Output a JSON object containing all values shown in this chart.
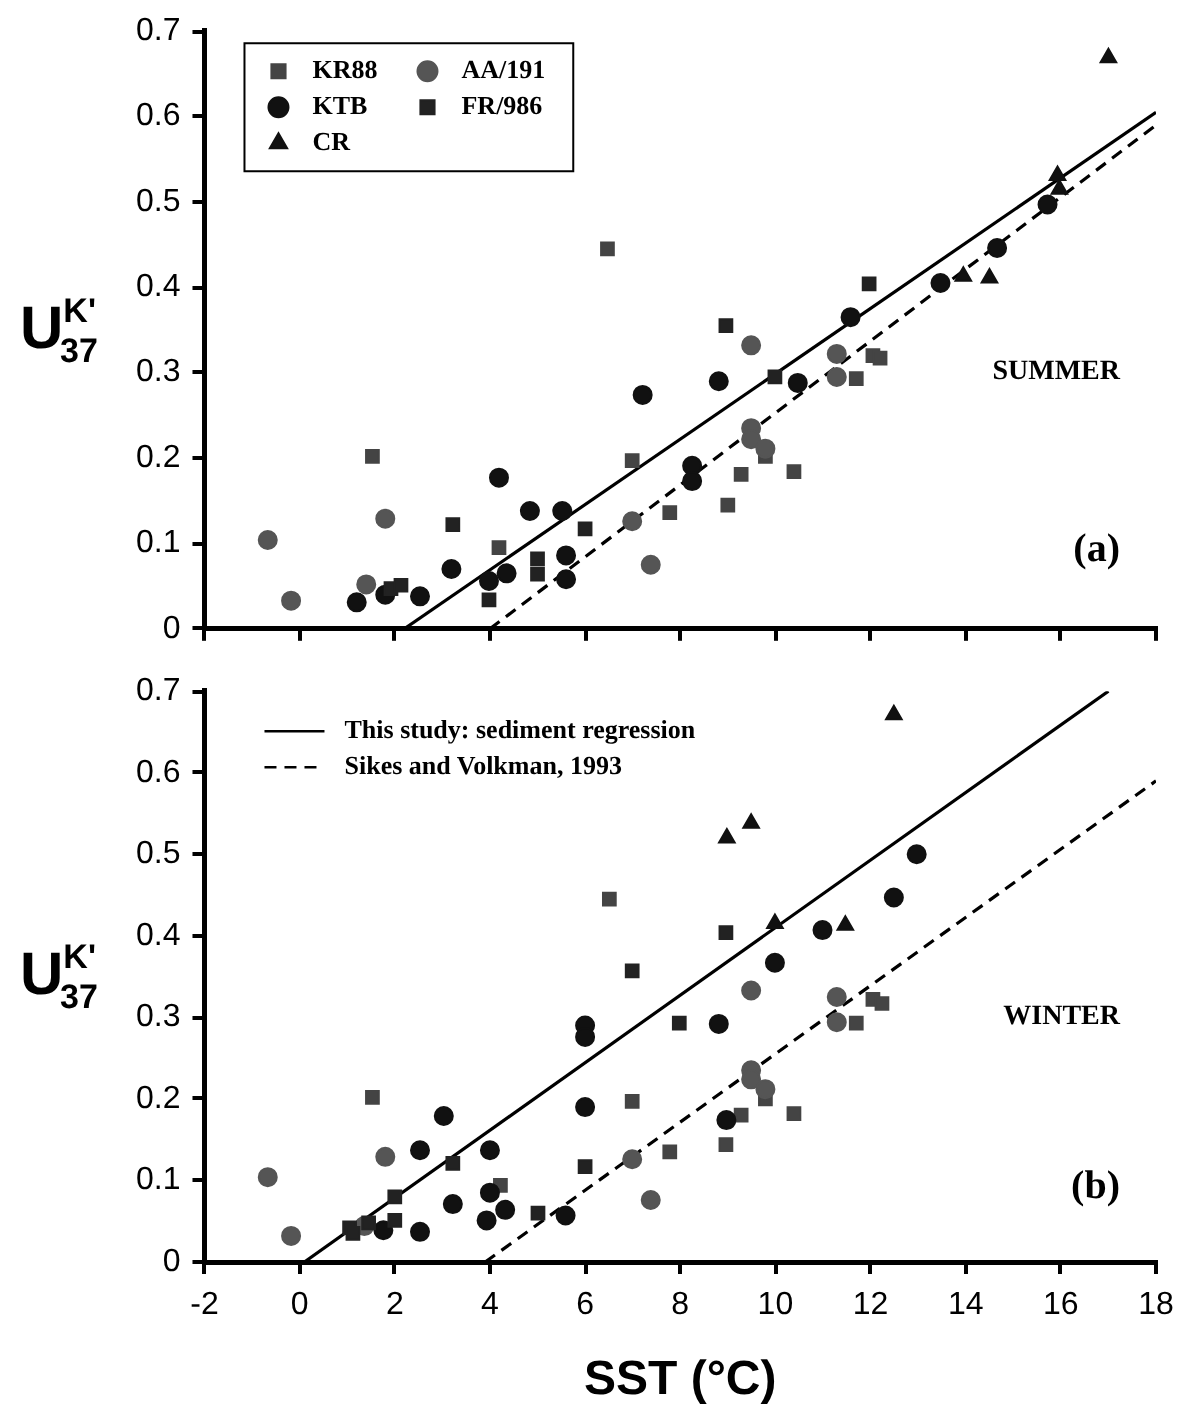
{
  "chart_data": [
    {
      "type": "scatter",
      "ylabel": "U$^{K'}$$_{37}$",
      "xlim": [
        -2,
        18
      ],
      "xticks": [
        -2,
        0,
        2,
        4,
        6,
        8,
        10,
        12,
        14,
        16,
        18
      ],
      "ylim": [
        0,
        0.7
      ],
      "yticks": [
        0,
        0.1,
        0.2,
        0.3,
        0.4,
        0.5,
        0.6,
        0.7
      ],
      "tick_labels": "y",
      "grid": false,
      "legend": "top left",
      "annotations": [
        "SUMMER",
        "(a)"
      ],
      "series": [
        {
          "name": "KR88",
          "color": "#444444",
          "marker": "square",
          "x": [
            1.53,
            4.19,
            6.47,
            6.99,
            7.78,
            9.0,
            9.28,
            9.79,
            10.39,
            11.7,
            12.05,
            12.2
          ],
          "values": [
            0.202,
            0.095,
            0.445,
            0.197,
            0.136,
            0.145,
            0.181,
            0.202,
            0.184,
            0.293,
            0.32,
            0.317
          ]
        },
        {
          "name": "KTB",
          "color": "#111111",
          "marker": "circle",
          "x": [
            1.2,
            1.8,
            2.53,
            3.19,
            3.98,
            4.19,
            4.35,
            4.84,
            5.52,
            5.6,
            5.6,
            7.21,
            8.25,
            8.25,
            8.81,
            10.47,
            11.58,
            13.47,
            14.66,
            15.72
          ],
          "values": [
            0.031,
            0.04,
            0.038,
            0.07,
            0.056,
            0.177,
            0.065,
            0.138,
            0.138,
            0.086,
            0.058,
            0.274,
            0.191,
            0.173,
            0.29,
            0.288,
            0.365,
            0.405,
            0.446,
            0.497
          ]
        },
        {
          "name": "CR",
          "color": "#111111",
          "marker": "triangle",
          "x": [
            13.95,
            14.5,
            15.93,
            15.97,
            17.0
          ],
          "values": [
            0.413,
            0.411,
            0.531,
            0.515,
            0.669
          ]
        },
        {
          "name": "AA/191",
          "color": "#555555",
          "marker": "circle",
          "x": [
            -0.67,
            -0.18,
            1.4,
            1.8,
            6.99,
            7.38,
            9.49,
            9.49,
            9.49,
            9.79,
            11.29,
            11.29
          ],
          "values": [
            0.104,
            0.033,
            0.052,
            0.129,
            0.126,
            0.075,
            0.332,
            0.235,
            0.222,
            0.211,
            0.322,
            0.295
          ]
        },
        {
          "name": "FR/986",
          "color": "#222222",
          "marker": "square",
          "x": [
            1.92,
            2.13,
            3.22,
            3.98,
            5.0,
            5.0,
            6.0,
            8.96,
            9.99,
            11.97
          ],
          "values": [
            0.047,
            0.051,
            0.122,
            0.034,
            0.082,
            0.064,
            0.117,
            0.355,
            0.295,
            0.404
          ]
        },
        {
          "type": "line",
          "color": "#000000",
          "marker": "none",
          "line_style": "solid",
          "x": [
            2.2,
            18
          ],
          "values": [
            0,
            0.605
          ]
        },
        {
          "type": "line",
          "color": "#000000",
          "marker": "none",
          "line_style": "dashed",
          "x": [
            4,
            18
          ],
          "values": [
            0,
            0.59
          ]
        }
      ]
    },
    {
      "type": "scatter",
      "xlabel": "SST (°C)",
      "ylabel": "U$^{K'}$$_{37}$",
      "xlim": [
        -2,
        18
      ],
      "xticks": [
        -2,
        0,
        2,
        4,
        6,
        8,
        10,
        12,
        14,
        16,
        18
      ],
      "ylim": [
        0,
        0.7
      ],
      "yticks": [
        0,
        0.1,
        0.2,
        0.3,
        0.4,
        0.5,
        0.6,
        0.7
      ],
      "grid": false,
      "legend": "top left",
      "annotations": [
        "WINTER",
        "(b)"
      ],
      "series": [
        {
          "color": "#444444",
          "marker": "square",
          "x": [
            1.53,
            4.22,
            6.51,
            6.99,
            7.78,
            8.96,
            9.28,
            9.79,
            10.39,
            11.7,
            12.05,
            12.24
          ],
          "values": [
            0.202,
            0.094,
            0.445,
            0.197,
            0.135,
            0.144,
            0.18,
            0.2,
            0.182,
            0.293,
            0.322,
            0.317
          ]
        },
        {
          "color": "#111111",
          "marker": "circle",
          "x": [
            1.76,
            2.53,
            2.53,
            3.03,
            3.22,
            3.93,
            4.0,
            4.0,
            4.32,
            5.59,
            6.0,
            6.0,
            6.0,
            8.81,
            8.97,
            9.99,
            10.99,
            12.49,
            12.97
          ],
          "values": [
            0.039,
            0.137,
            0.037,
            0.179,
            0.071,
            0.051,
            0.137,
            0.085,
            0.064,
            0.057,
            0.29,
            0.276,
            0.19,
            0.292,
            0.174,
            0.367,
            0.407,
            0.447,
            0.5
          ]
        },
        {
          "color": "#111111",
          "marker": "triangle",
          "x": [
            8.98,
            9.49,
            9.99,
            11.47,
            12.49
          ],
          "values": [
            0.52,
            0.538,
            0.415,
            0.413,
            0.671
          ]
        },
        {
          "color": "#555555",
          "marker": "circle",
          "x": [
            -0.67,
            -0.18,
            1.36,
            1.8,
            6.99,
            7.38,
            9.49,
            9.49,
            9.49,
            9.79,
            11.29,
            11.29
          ],
          "values": [
            0.104,
            0.032,
            0.044,
            0.129,
            0.126,
            0.076,
            0.333,
            0.235,
            0.224,
            0.212,
            0.325,
            0.294
          ]
        },
        {
          "color": "#222222",
          "marker": "square",
          "x": [
            1.05,
            1.12,
            1.45,
            2.0,
            2.0,
            3.22,
            5.01,
            6.0,
            6.99,
            7.98,
            8.96
          ],
          "values": [
            0.042,
            0.035,
            0.048,
            0.08,
            0.051,
            0.121,
            0.06,
            0.117,
            0.357,
            0.293,
            0.404
          ]
        },
        {
          "type": "line",
          "name": "This study: sediment regression",
          "color": "#000000",
          "marker": "none",
          "line_style": "solid",
          "x": [
            0.1,
            17
          ],
          "values": [
            0,
            0.7
          ]
        },
        {
          "type": "line",
          "name": "Sikes and Volkman, 1993",
          "color": "#000000",
          "marker": "none",
          "line_style": "dashed",
          "x": [
            3.9,
            18
          ],
          "values": [
            0,
            0.59
          ]
        }
      ]
    }
  ]
}
